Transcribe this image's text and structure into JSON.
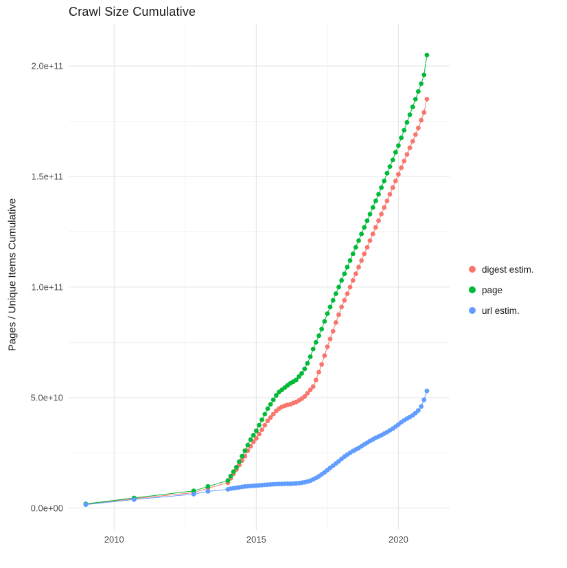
{
  "chart_data": {
    "type": "scatter",
    "title": "Crawl Size Cumulative",
    "xlabel": "",
    "ylabel": "Pages / Unique Items Cumulative",
    "y_unit": 1000000000,
    "xlim": [
      2008.4,
      2021.8
    ],
    "ylim": [
      -10,
      219
    ],
    "x_ticks": [
      2010,
      2015,
      2020
    ],
    "x_tick_labels": [
      "2010",
      "2015",
      "2020"
    ],
    "x_minor_ticks": [
      2012.5,
      2017.5
    ],
    "y_ticks": [
      0,
      50,
      100,
      150,
      200
    ],
    "y_tick_labels": [
      "0.0e+00",
      "5.0e+10",
      "1.0e+11",
      "1.5e+11",
      "2.0e+11"
    ],
    "y_minor_ticks": [
      25,
      75,
      125,
      175
    ],
    "grid": true,
    "grid_major_color": "#E4E4E4",
    "grid_minor_color": "#F1F1F1",
    "legend_position": "right",
    "series": [
      {
        "name": "digest estim.",
        "color": "#F8766D",
        "points": [
          [
            2009.0,
            1.8
          ],
          [
            2010.7,
            4.3
          ],
          [
            2012.8,
            7.0
          ],
          [
            2013.3,
            9.0
          ],
          [
            2014.0,
            11.5
          ],
          [
            2014.1,
            13.5
          ],
          [
            2014.2,
            15.5
          ],
          [
            2014.3,
            17.5
          ],
          [
            2014.4,
            19.5
          ],
          [
            2014.5,
            21.5
          ],
          [
            2014.6,
            23.5
          ],
          [
            2014.7,
            26
          ],
          [
            2014.8,
            28
          ],
          [
            2014.9,
            30
          ],
          [
            2015.0,
            31.5
          ],
          [
            2015.1,
            33.5
          ],
          [
            2015.2,
            35.5
          ],
          [
            2015.3,
            37.5
          ],
          [
            2015.4,
            39.5
          ],
          [
            2015.5,
            41
          ],
          [
            2015.6,
            42.5
          ],
          [
            2015.7,
            44
          ],
          [
            2015.8,
            45
          ],
          [
            2015.9,
            45.8
          ],
          [
            2016.0,
            46.3
          ],
          [
            2016.1,
            46.7
          ],
          [
            2016.2,
            47
          ],
          [
            2016.3,
            47.5
          ],
          [
            2016.4,
            48
          ],
          [
            2016.5,
            48.7
          ],
          [
            2016.6,
            49.5
          ],
          [
            2016.7,
            50.5
          ],
          [
            2016.8,
            52
          ],
          [
            2016.9,
            53.5
          ],
          [
            2017.0,
            55
          ],
          [
            2017.1,
            58
          ],
          [
            2017.2,
            61.5
          ],
          [
            2017.3,
            65
          ],
          [
            2017.4,
            69
          ],
          [
            2017.5,
            73
          ],
          [
            2017.6,
            76.5
          ],
          [
            2017.7,
            80
          ],
          [
            2017.8,
            84
          ],
          [
            2017.9,
            87.5
          ],
          [
            2018.0,
            91
          ],
          [
            2018.1,
            94
          ],
          [
            2018.2,
            97
          ],
          [
            2018.3,
            100
          ],
          [
            2018.4,
            103
          ],
          [
            2018.5,
            106
          ],
          [
            2018.6,
            109
          ],
          [
            2018.7,
            112
          ],
          [
            2018.8,
            115
          ],
          [
            2018.9,
            118
          ],
          [
            2019.0,
            121
          ],
          [
            2019.1,
            124
          ],
          [
            2019.2,
            127
          ],
          [
            2019.3,
            130
          ],
          [
            2019.4,
            133
          ],
          [
            2019.5,
            136
          ],
          [
            2019.6,
            139
          ],
          [
            2019.7,
            142
          ],
          [
            2019.8,
            145
          ],
          [
            2019.9,
            148
          ],
          [
            2020.0,
            151
          ],
          [
            2020.1,
            154
          ],
          [
            2020.2,
            157
          ],
          [
            2020.3,
            160
          ],
          [
            2020.4,
            163
          ],
          [
            2020.5,
            166
          ],
          [
            2020.6,
            169
          ],
          [
            2020.7,
            172
          ],
          [
            2020.8,
            175.5
          ],
          [
            2020.9,
            179
          ],
          [
            2021.0,
            185
          ]
        ]
      },
      {
        "name": "page",
        "color": "#00BA38",
        "points": [
          [
            2009.0,
            1.9
          ],
          [
            2010.7,
            4.6
          ],
          [
            2012.8,
            7.8
          ],
          [
            2013.3,
            9.8
          ],
          [
            2014.0,
            12.5
          ],
          [
            2014.1,
            14.5
          ],
          [
            2014.2,
            16.5
          ],
          [
            2014.3,
            18.5
          ],
          [
            2014.4,
            21
          ],
          [
            2014.5,
            23.5
          ],
          [
            2014.6,
            26
          ],
          [
            2014.7,
            28.5
          ],
          [
            2014.8,
            31
          ],
          [
            2014.9,
            33
          ],
          [
            2015.0,
            35
          ],
          [
            2015.1,
            37.5
          ],
          [
            2015.2,
            40
          ],
          [
            2015.3,
            42.5
          ],
          [
            2015.4,
            45
          ],
          [
            2015.5,
            47
          ],
          [
            2015.6,
            49
          ],
          [
            2015.7,
            51
          ],
          [
            2015.8,
            52.5
          ],
          [
            2015.9,
            53.5
          ],
          [
            2016.0,
            54.5
          ],
          [
            2016.1,
            55.5
          ],
          [
            2016.2,
            56.5
          ],
          [
            2016.3,
            57.2
          ],
          [
            2016.4,
            58
          ],
          [
            2016.5,
            59.5
          ],
          [
            2016.6,
            61
          ],
          [
            2016.7,
            63
          ],
          [
            2016.8,
            65.5
          ],
          [
            2016.9,
            68.5
          ],
          [
            2017.0,
            72
          ],
          [
            2017.1,
            75
          ],
          [
            2017.2,
            78
          ],
          [
            2017.3,
            81
          ],
          [
            2017.4,
            84.5
          ],
          [
            2017.5,
            88
          ],
          [
            2017.6,
            91
          ],
          [
            2017.7,
            94
          ],
          [
            2017.8,
            97
          ],
          [
            2017.9,
            100
          ],
          [
            2018.0,
            103
          ],
          [
            2018.1,
            106
          ],
          [
            2018.2,
            109
          ],
          [
            2018.3,
            112
          ],
          [
            2018.4,
            115
          ],
          [
            2018.5,
            118
          ],
          [
            2018.6,
            121
          ],
          [
            2018.7,
            124
          ],
          [
            2018.8,
            127
          ],
          [
            2018.9,
            130
          ],
          [
            2019.0,
            133
          ],
          [
            2019.1,
            136
          ],
          [
            2019.2,
            139
          ],
          [
            2019.3,
            142
          ],
          [
            2019.4,
            145
          ],
          [
            2019.5,
            148
          ],
          [
            2019.6,
            151.5
          ],
          [
            2019.7,
            154.5
          ],
          [
            2019.8,
            157.5
          ],
          [
            2019.9,
            161
          ],
          [
            2020.0,
            164
          ],
          [
            2020.1,
            167.5
          ],
          [
            2020.2,
            171
          ],
          [
            2020.3,
            174.5
          ],
          [
            2020.4,
            178
          ],
          [
            2020.5,
            181.5
          ],
          [
            2020.6,
            185
          ],
          [
            2020.7,
            188.5
          ],
          [
            2020.8,
            192
          ],
          [
            2020.9,
            196
          ],
          [
            2021.0,
            205
          ]
        ]
      },
      {
        "name": "url estim.",
        "color": "#619CFF",
        "points": [
          [
            2009.0,
            1.6
          ],
          [
            2010.7,
            3.9
          ],
          [
            2012.8,
            6.3
          ],
          [
            2013.3,
            7.6
          ],
          [
            2014.0,
            8.5
          ],
          [
            2014.1,
            8.8
          ],
          [
            2014.2,
            9.0
          ],
          [
            2014.3,
            9.2
          ],
          [
            2014.4,
            9.4
          ],
          [
            2014.5,
            9.6
          ],
          [
            2014.6,
            9.8
          ],
          [
            2014.7,
            9.9
          ],
          [
            2014.8,
            10.0
          ],
          [
            2014.9,
            10.1
          ],
          [
            2015.0,
            10.2
          ],
          [
            2015.1,
            10.3
          ],
          [
            2015.2,
            10.4
          ],
          [
            2015.3,
            10.5
          ],
          [
            2015.4,
            10.6
          ],
          [
            2015.5,
            10.7
          ],
          [
            2015.6,
            10.8
          ],
          [
            2015.7,
            10.85
          ],
          [
            2015.8,
            10.9
          ],
          [
            2015.9,
            10.95
          ],
          [
            2016.0,
            11.0
          ],
          [
            2016.1,
            11.0
          ],
          [
            2016.2,
            11.05
          ],
          [
            2016.3,
            11.1
          ],
          [
            2016.4,
            11.2
          ],
          [
            2016.5,
            11.3
          ],
          [
            2016.6,
            11.5
          ],
          [
            2016.7,
            11.7
          ],
          [
            2016.8,
            12.0
          ],
          [
            2016.9,
            12.4
          ],
          [
            2017.0,
            13.0
          ],
          [
            2017.1,
            13.6
          ],
          [
            2017.2,
            14.4
          ],
          [
            2017.3,
            15.3
          ],
          [
            2017.4,
            16.2
          ],
          [
            2017.5,
            17.2
          ],
          [
            2017.6,
            18.2
          ],
          [
            2017.7,
            19.2
          ],
          [
            2017.8,
            20.2
          ],
          [
            2017.9,
            21.2
          ],
          [
            2018.0,
            22.3
          ],
          [
            2018.1,
            23.3
          ],
          [
            2018.2,
            24.2
          ],
          [
            2018.3,
            25.0
          ],
          [
            2018.4,
            25.8
          ],
          [
            2018.5,
            26.5
          ],
          [
            2018.6,
            27.2
          ],
          [
            2018.7,
            28.0
          ],
          [
            2018.8,
            28.8
          ],
          [
            2018.9,
            29.6
          ],
          [
            2019.0,
            30.4
          ],
          [
            2019.1,
            31.1
          ],
          [
            2019.2,
            31.8
          ],
          [
            2019.3,
            32.4
          ],
          [
            2019.4,
            33.0
          ],
          [
            2019.5,
            33.7
          ],
          [
            2019.6,
            34.4
          ],
          [
            2019.7,
            35.2
          ],
          [
            2019.8,
            36.0
          ],
          [
            2019.9,
            36.9
          ],
          [
            2020.0,
            37.8
          ],
          [
            2020.1,
            38.8
          ],
          [
            2020.2,
            39.7
          ],
          [
            2020.3,
            40.5
          ],
          [
            2020.4,
            41.2
          ],
          [
            2020.5,
            42.0
          ],
          [
            2020.6,
            43.0
          ],
          [
            2020.7,
            44.2
          ],
          [
            2020.8,
            46.0
          ],
          [
            2020.9,
            49.0
          ],
          [
            2021.0,
            53.0
          ]
        ]
      }
    ]
  }
}
